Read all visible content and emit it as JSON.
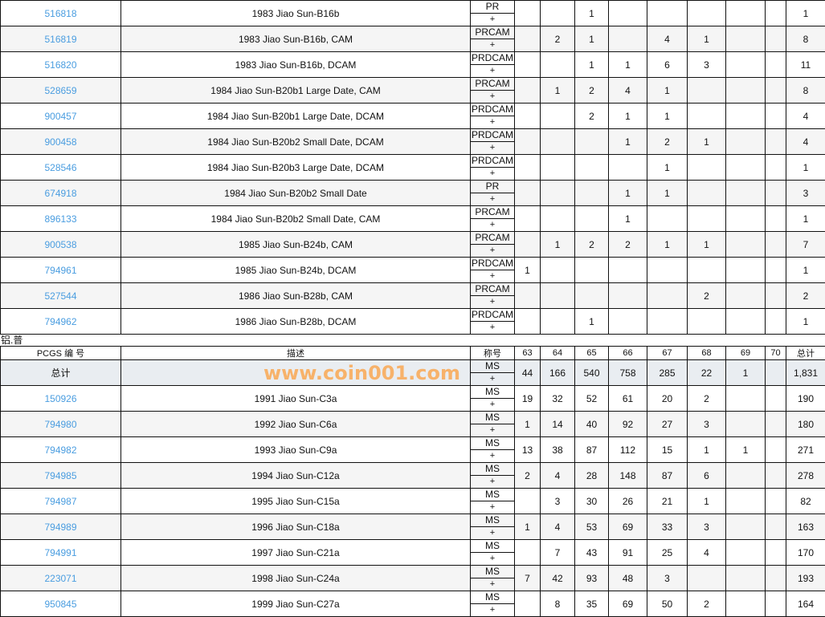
{
  "grades": [
    "63",
    "64",
    "65",
    "66",
    "67",
    "68",
    "69",
    "70"
  ],
  "top_table": {
    "rows": [
      {
        "pcgs": "516818",
        "desc": "1983 Jiao Sun-B16b",
        "desig": "PR",
        "plus": "+",
        "vals": [
          null,
          null,
          "1",
          null,
          null,
          null,
          null,
          null
        ],
        "total": "1"
      },
      {
        "pcgs": "516819",
        "desc": "1983 Jiao Sun-B16b, CAM",
        "desig": "PRCAM",
        "plus": "+",
        "vals": [
          null,
          "2",
          "1",
          null,
          "4",
          "1",
          null,
          null
        ],
        "total": "8"
      },
      {
        "pcgs": "516820",
        "desc": "1983 Jiao Sun-B16b, DCAM",
        "desig": "PRDCAM",
        "plus": "+",
        "vals": [
          null,
          null,
          "1",
          "1",
          "6",
          "3",
          null,
          null
        ],
        "total": "11"
      },
      {
        "pcgs": "528659",
        "desc": "1984 Jiao Sun-B20b1 Large Date, CAM",
        "desig": "PRCAM",
        "plus": "+",
        "vals": [
          null,
          "1",
          "2",
          "4",
          "1",
          null,
          null,
          null
        ],
        "total": "8"
      },
      {
        "pcgs": "900457",
        "desc": "1984 Jiao Sun-B20b1 Large Date, DCAM",
        "desig": "PRDCAM",
        "plus": "+",
        "vals": [
          null,
          null,
          "2",
          "1",
          "1",
          null,
          null,
          null
        ],
        "total": "4"
      },
      {
        "pcgs": "900458",
        "desc": "1984 Jiao Sun-B20b2 Small Date, DCAM",
        "desig": "PRDCAM",
        "plus": "+",
        "vals": [
          null,
          null,
          null,
          "1",
          "2",
          "1",
          null,
          null
        ],
        "total": "4"
      },
      {
        "pcgs": "528546",
        "desc": "1984 Jiao Sun-B20b3 Large Date, DCAM",
        "desig": "PRDCAM",
        "plus": "+",
        "vals": [
          null,
          null,
          null,
          null,
          "1",
          null,
          null,
          null
        ],
        "total": "1"
      },
      {
        "pcgs": "674918",
        "desc": "1984 Jiao Sun-B20b2 Small Date",
        "desig": "PR",
        "plus": "+",
        "vals": [
          null,
          null,
          null,
          "1",
          "1",
          null,
          null,
          null
        ],
        "total": "3"
      },
      {
        "pcgs": "896133",
        "desc": "1984 Jiao Sun-B20b2 Small Date, CAM",
        "desig": "PRCAM",
        "plus": "+",
        "vals": [
          null,
          null,
          null,
          "1",
          null,
          null,
          null,
          null
        ],
        "total": "1"
      },
      {
        "pcgs": "900538",
        "desc": "1985 Jiao Sun-B24b, CAM",
        "desig": "PRCAM",
        "plus": "+",
        "vals": [
          null,
          "1",
          "2",
          "2",
          "1",
          "1",
          null,
          null
        ],
        "total": "7"
      },
      {
        "pcgs": "794961",
        "desc": "1985 Jiao Sun-B24b, DCAM",
        "desig": "PRDCAM",
        "plus": "+",
        "vals": [
          "1",
          null,
          null,
          null,
          null,
          null,
          null,
          null
        ],
        "total": "1"
      },
      {
        "pcgs": "527544",
        "desc": "1986 Jiao Sun-B28b, CAM",
        "desig": "PRCAM",
        "plus": "+",
        "vals": [
          null,
          null,
          null,
          null,
          null,
          "2",
          null,
          null
        ],
        "total": "2"
      },
      {
        "pcgs": "794962",
        "desc": "1986 Jiao Sun-B28b, DCAM",
        "desig": "PRDCAM",
        "plus": "+",
        "vals": [
          null,
          null,
          "1",
          null,
          null,
          null,
          null,
          null
        ],
        "total": "1"
      }
    ]
  },
  "section_label": "铝.普",
  "bottom_table": {
    "headers": {
      "pcgs": "PCGS 编 号",
      "desc": "描述",
      "desig": "称号",
      "total": "总计"
    },
    "total_row": {
      "label": "总计",
      "desig": "MS",
      "plus": "+",
      "vals": [
        "44",
        "166",
        "540",
        "758",
        "285",
        "22",
        "1",
        null
      ],
      "total": "1,831"
    },
    "rows": [
      {
        "pcgs": "150926",
        "desc": "1991 Jiao Sun-C3a",
        "desig": "MS",
        "plus": "+",
        "vals": [
          "19",
          "32",
          "52",
          "61",
          "20",
          "2",
          null,
          null
        ],
        "total": "190"
      },
      {
        "pcgs": "794980",
        "desc": "1992 Jiao Sun-C6a",
        "desig": "MS",
        "plus": "+",
        "vals": [
          "1",
          "14",
          "40",
          "92",
          "27",
          "3",
          null,
          null
        ],
        "total": "180"
      },
      {
        "pcgs": "794982",
        "desc": "1993 Jiao Sun-C9a",
        "desig": "MS",
        "plus": "+",
        "vals": [
          "13",
          "38",
          "87",
          "112",
          "15",
          "1",
          "1",
          null
        ],
        "total": "271"
      },
      {
        "pcgs": "794985",
        "desc": "1994 Jiao Sun-C12a",
        "desig": "MS",
        "plus": "+",
        "vals": [
          "2",
          "4",
          "28",
          "148",
          "87",
          "6",
          null,
          null
        ],
        "total": "278"
      },
      {
        "pcgs": "794987",
        "desc": "1995 Jiao Sun-C15a",
        "desig": "MS",
        "plus": "+",
        "vals": [
          null,
          "3",
          "30",
          "26",
          "21",
          "1",
          null,
          null
        ],
        "total": "82"
      },
      {
        "pcgs": "794989",
        "desc": "1996 Jiao Sun-C18a",
        "desig": "MS",
        "plus": "+",
        "vals": [
          "1",
          "4",
          "53",
          "69",
          "33",
          "3",
          null,
          null
        ],
        "total": "163"
      },
      {
        "pcgs": "794991",
        "desc": "1997 Jiao Sun-C21a",
        "desig": "MS",
        "plus": "+",
        "vals": [
          null,
          "7",
          "43",
          "91",
          "25",
          "4",
          null,
          null
        ],
        "total": "170"
      },
      {
        "pcgs": "223071",
        "desc": "1998 Jiao Sun-C24a",
        "desig": "MS",
        "plus": "+",
        "vals": [
          "7",
          "42",
          "93",
          "48",
          "3",
          null,
          null,
          null
        ],
        "total": "193"
      },
      {
        "pcgs": "950845",
        "desc": "1999 Jiao Sun-C27a",
        "desig": "MS",
        "plus": "+",
        "vals": [
          null,
          "8",
          "35",
          "69",
          "50",
          "2",
          null,
          null
        ],
        "total": "164"
      }
    ]
  },
  "watermark": "www.coin001.com",
  "colors": {
    "link": "#4a9de0",
    "alt_row": "#f5f5f5",
    "total_row": "#e9edf1",
    "watermark": "#f7b26a"
  }
}
